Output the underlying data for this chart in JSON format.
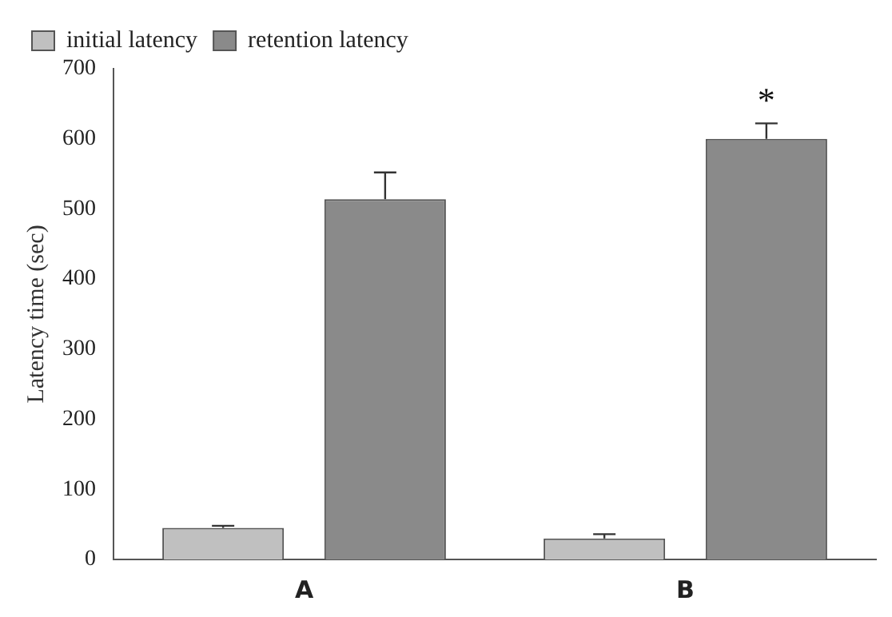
{
  "chart_data": {
    "type": "bar",
    "ylabel": "Latency time (sec)",
    "categories": [
      "A",
      "B"
    ],
    "series": [
      {
        "name": "initial latency",
        "color": "#c0c0c0",
        "values": [
          45,
          30
        ],
        "errors": [
          3,
          6
        ]
      },
      {
        "name": "retention latency",
        "color": "#8a8a8a",
        "values": [
          514,
          600
        ],
        "errors": [
          38,
          22
        ]
      }
    ],
    "ylim": [
      0,
      700
    ],
    "yticks": [
      0,
      100,
      200,
      300,
      400,
      500,
      600,
      700
    ],
    "grid": false,
    "legend": "top left",
    "annotations": [
      "*"
    ]
  }
}
